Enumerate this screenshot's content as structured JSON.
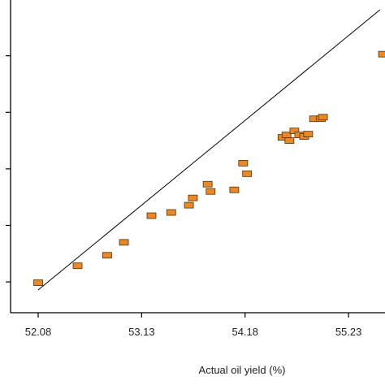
{
  "chart_data": {
    "type": "scatter",
    "title": "",
    "xlabel": "Actual oil yield (%)",
    "ylabel": "",
    "x_ticks": [
      52.08,
      53.13,
      54.18,
      55.23
    ],
    "x_tick_labels": [
      "52.08",
      "53.13",
      "54.18",
      "55.23"
    ],
    "xlim": [
      52.08,
      55.6
    ],
    "ylim": [
      52.05,
      55.55
    ],
    "y_tick_values": [
      52.18,
      52.88,
      53.58,
      54.28,
      54.98
    ],
    "grid": false,
    "legend": "none",
    "marker_color": "#E8882A",
    "marker_edge_color": "#5A3000",
    "line_color": "#000000",
    "fit_line": {
      "x": [
        52.08,
        55.55
      ],
      "y": [
        52.08,
        55.55
      ]
    },
    "points": [
      {
        "x": 52.08,
        "y": 52.17
      },
      {
        "x": 52.48,
        "y": 52.38
      },
      {
        "x": 52.78,
        "y": 52.51
      },
      {
        "x": 52.95,
        "y": 52.67
      },
      {
        "x": 53.23,
        "y": 53.0
      },
      {
        "x": 53.43,
        "y": 53.04
      },
      {
        "x": 53.61,
        "y": 53.13
      },
      {
        "x": 53.65,
        "y": 53.22
      },
      {
        "x": 53.8,
        "y": 53.39
      },
      {
        "x": 53.83,
        "y": 53.3
      },
      {
        "x": 54.07,
        "y": 53.32
      },
      {
        "x": 54.16,
        "y": 53.65
      },
      {
        "x": 54.2,
        "y": 53.52
      },
      {
        "x": 54.56,
        "y": 53.97
      },
      {
        "x": 54.6,
        "y": 54.0
      },
      {
        "x": 54.63,
        "y": 53.93
      },
      {
        "x": 54.68,
        "y": 54.05
      },
      {
        "x": 54.73,
        "y": 54.0
      },
      {
        "x": 54.78,
        "y": 53.98
      },
      {
        "x": 54.82,
        "y": 54.01
      },
      {
        "x": 54.88,
        "y": 54.2
      },
      {
        "x": 54.95,
        "y": 54.2
      },
      {
        "x": 54.97,
        "y": 54.22
      },
      {
        "x": 55.58,
        "y": 55.0
      }
    ]
  }
}
